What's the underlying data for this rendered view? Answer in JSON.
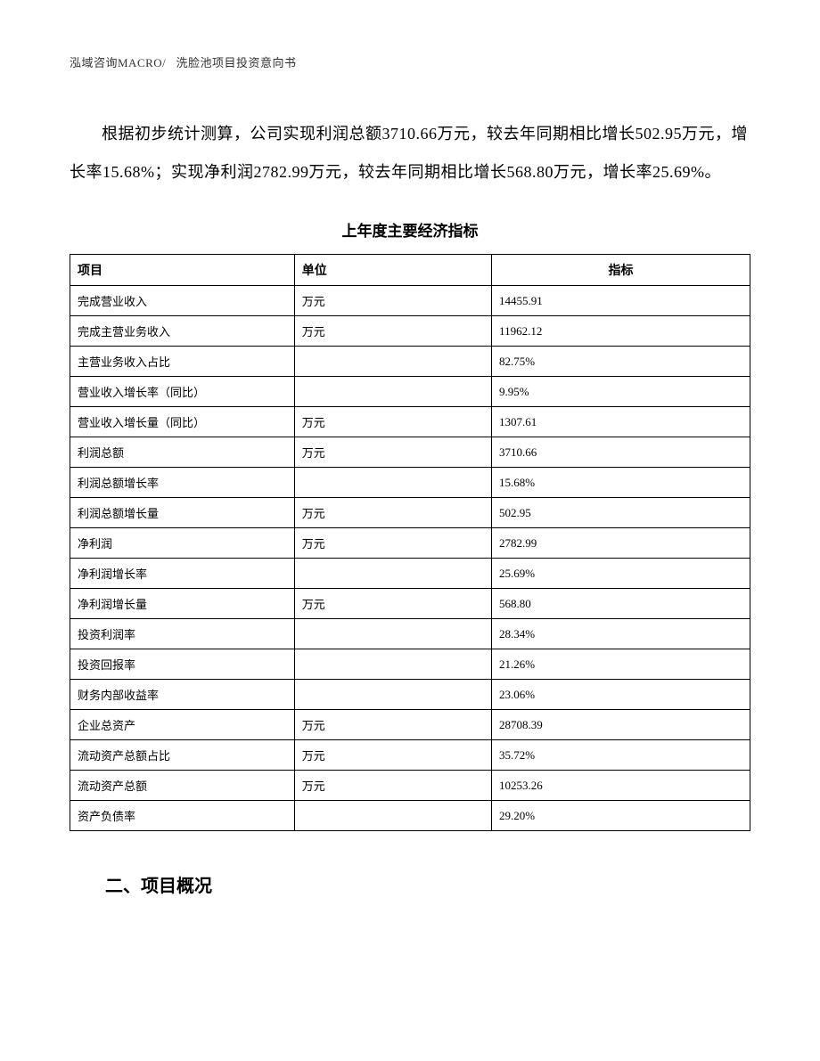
{
  "header": {
    "company": "泓域咨询MACRO/",
    "doc_title": "洗脸池项目投资意向书"
  },
  "paragraph": "根据初步统计测算，公司实现利润总额3710.66万元，较去年同期相比增长502.95万元，增长率15.68%；实现净利润2782.99万元，较去年同期相比增长568.80万元，增长率25.69%。",
  "table": {
    "title": "上年度主要经济指标",
    "columns": {
      "item": "项目",
      "unit": "单位",
      "value": "指标"
    },
    "rows": [
      {
        "item": "完成营业收入",
        "unit": "万元",
        "value": "14455.91"
      },
      {
        "item": "完成主营业务收入",
        "unit": "万元",
        "value": "11962.12"
      },
      {
        "item": "主营业务收入占比",
        "unit": "",
        "value": "82.75%"
      },
      {
        "item": "营业收入增长率（同比）",
        "unit": "",
        "value": "9.95%"
      },
      {
        "item": "营业收入增长量（同比）",
        "unit": "万元",
        "value": "1307.61"
      },
      {
        "item": "利润总额",
        "unit": "万元",
        "value": "3710.66"
      },
      {
        "item": "利润总额增长率",
        "unit": "",
        "value": "15.68%"
      },
      {
        "item": "利润总额增长量",
        "unit": "万元",
        "value": "502.95"
      },
      {
        "item": "净利润",
        "unit": "万元",
        "value": "2782.99"
      },
      {
        "item": "净利润增长率",
        "unit": "",
        "value": "25.69%"
      },
      {
        "item": "净利润增长量",
        "unit": "万元",
        "value": "568.80"
      },
      {
        "item": "投资利润率",
        "unit": "",
        "value": "28.34%"
      },
      {
        "item": "投资回报率",
        "unit": "",
        "value": "21.26%"
      },
      {
        "item": "财务内部收益率",
        "unit": "",
        "value": "23.06%"
      },
      {
        "item": "企业总资产",
        "unit": "万元",
        "value": "28708.39"
      },
      {
        "item": "流动资产总额占比",
        "unit": "万元",
        "value": "35.72%"
      },
      {
        "item": "流动资产总额",
        "unit": "万元",
        "value": "10253.26"
      },
      {
        "item": "资产负债率",
        "unit": "",
        "value": "29.20%"
      }
    ]
  },
  "section_title": "二、项目概况",
  "styling": {
    "background_color": "#ffffff",
    "text_color": "#000000",
    "border_color": "#000000",
    "header_font_size": 13,
    "paragraph_font_size": 18,
    "table_title_font_size": 17,
    "table_font_size": 13,
    "section_title_font_size": 20,
    "line_height": 2.4
  }
}
